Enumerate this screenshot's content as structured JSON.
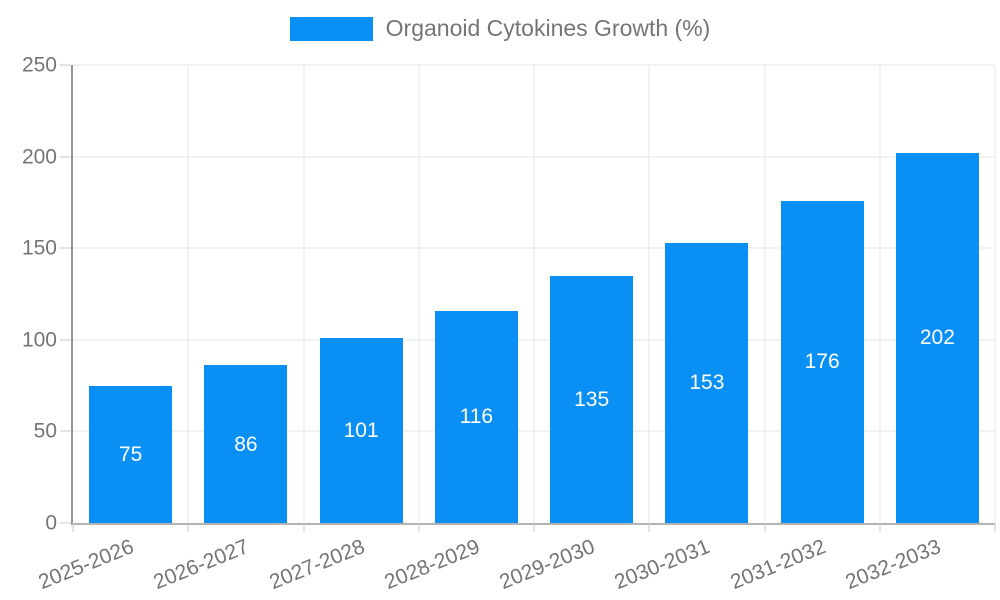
{
  "chart_data": {
    "type": "bar",
    "title": "",
    "legend": "Organoid Cytokines Growth (%)",
    "legend_position": "top-center",
    "categories": [
      "2025-2026",
      "2026-2027",
      "2027-2028",
      "2028-2029",
      "2029-2030",
      "2030-2031",
      "2031-2032",
      "2032-2033"
    ],
    "values": [
      75,
      86,
      101,
      116,
      135,
      153,
      176,
      202
    ],
    "xlabel": "",
    "ylabel": "",
    "ylim": [
      0,
      250
    ],
    "yticks": [
      0,
      50,
      100,
      150,
      200,
      250
    ],
    "grid": true,
    "value_labels": "centered-inside-bars"
  },
  "colors": {
    "bar": "#0a90f5",
    "value_label": "#ffffff",
    "grid": "#e6e6e6",
    "y_axis_line": "#969696",
    "x_axis_line": "#b3b3b3",
    "tick": "#c9c9c9",
    "axis_text": "#757575",
    "background": "#ffffff"
  }
}
